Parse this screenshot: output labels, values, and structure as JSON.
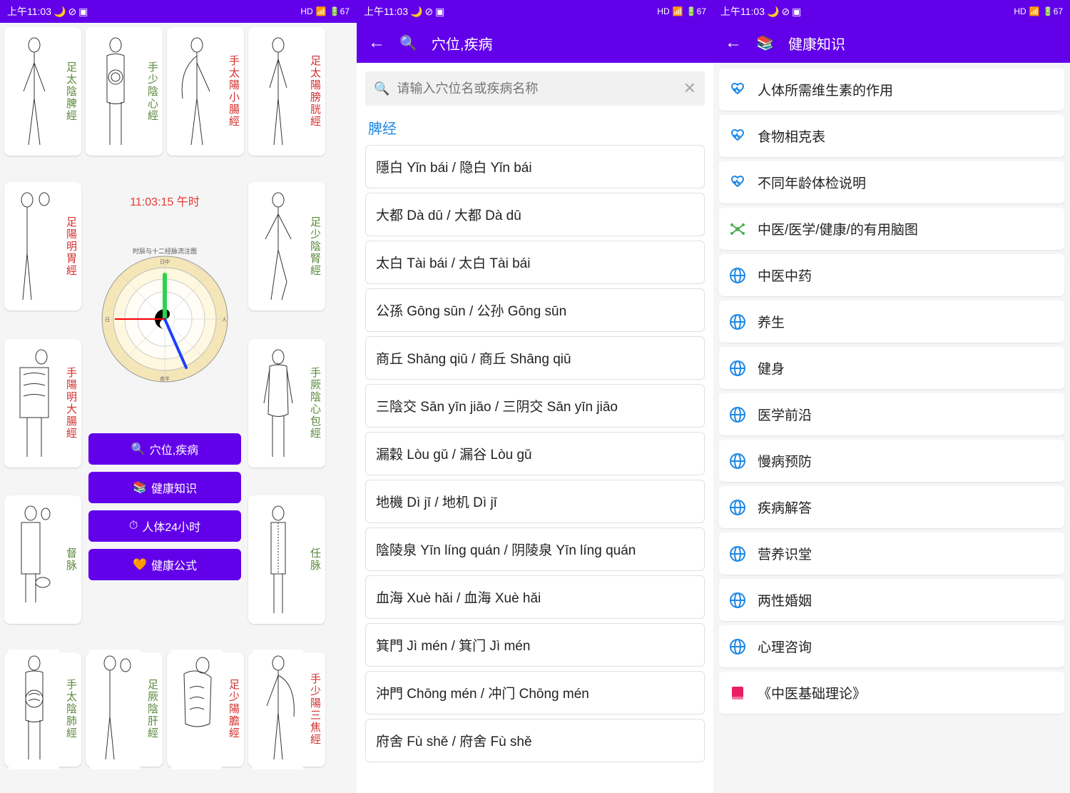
{
  "status": {
    "time": "上午11:03",
    "hd": "HD",
    "battery": "67"
  },
  "screen1": {
    "meridians_left": [
      {
        "label": "足太陰脾經",
        "color": "#5a8a3a"
      },
      {
        "label": "足陽明胃經",
        "color": "#d32f2f"
      },
      {
        "label": "手陽明大腸經",
        "color": "#d32f2f"
      },
      {
        "label": "督脉",
        "color": "#5a8a3a"
      },
      {
        "label": "手太陰肺經",
        "color": "#5a8a3a"
      }
    ],
    "meridians_left2": [
      {
        "label": "手少陰心經",
        "color": "#5a8a3a"
      },
      {
        "label": "足厥陰肝經",
        "color": "#5a8a3a"
      }
    ],
    "meridians_right": [
      {
        "label": "手太陽小腸經",
        "color": "#d32f2f"
      },
      {
        "label": "足少陽膽經",
        "color": "#5a8a3a"
      }
    ],
    "meridians_right2": [
      {
        "label": "足太陽膀胱經",
        "color": "#d32f2f"
      },
      {
        "label": "足少陰腎經",
        "color": "#5a8a3a"
      },
      {
        "label": "手厥陰心包經",
        "color": "#5a8a3a"
      },
      {
        "label": "任脉",
        "color": "#5a8a3a"
      },
      {
        "label": "手少陽三焦經",
        "color": "#d32f2f"
      }
    ],
    "clock_time": "11:03:15  午时",
    "clock_title": "时辰与十二经脉流注图",
    "buttons": [
      {
        "icon": "🔍",
        "label": "穴位,疾病"
      },
      {
        "icon": "📚",
        "label": "健康知识"
      },
      {
        "icon": "⏱",
        "label": "人体24小时"
      },
      {
        "icon": "🧡",
        "label": "健康公式"
      }
    ]
  },
  "screen2": {
    "title_icon": "🔍",
    "title": "穴位,疾病",
    "search_placeholder": "请输入穴位名或疾病名称",
    "section": "脾经",
    "items": [
      "隱白 Yǐn bái / 隐白 Yǐn bái",
      "大都 Dà dū / 大都 Dà dū",
      "太白 Tài bái / 太白 Tài bái",
      "公孫 Gōng sūn / 公孙 Gōng sūn",
      "商丘 Shāng qiū / 商丘 Shāng qiū",
      "三陰交 Sān yīn jiāo / 三阴交 Sān yīn jiāo",
      "漏穀 Lòu gǔ / 漏谷 Lòu gǔ",
      "地機 Dì jī / 地机 Dì jī",
      "陰陵泉 Yīn líng quán / 阴陵泉 Yīn líng quán",
      "血海 Xuè hǎi / 血海 Xuè hǎi",
      "箕門 Jì mén / 箕门 Jì mén",
      "沖門 Chōng mén / 冲门 Chōng mén",
      "府舍 Fù shě / 府舍 Fù shě"
    ]
  },
  "screen3": {
    "title_icon": "📚",
    "title": "健康知识",
    "items": [
      {
        "icon": "heart",
        "color": "#1e88e5",
        "label": "人体所需维生素的作用"
      },
      {
        "icon": "heart",
        "color": "#1e88e5",
        "label": "食物相克表"
      },
      {
        "icon": "heart",
        "color": "#1e88e5",
        "label": "不同年龄体检说明"
      },
      {
        "icon": "net",
        "color": "#4caf50",
        "label": "中医/医学/健康/的有用脑图"
      },
      {
        "icon": "globe",
        "color": "#1e88e5",
        "label": "中医中药"
      },
      {
        "icon": "globe",
        "color": "#1e88e5",
        "label": "养生"
      },
      {
        "icon": "globe",
        "color": "#1e88e5",
        "label": "健身"
      },
      {
        "icon": "globe",
        "color": "#1e88e5",
        "label": "医学前沿"
      },
      {
        "icon": "globe",
        "color": "#1e88e5",
        "label": "慢病预防"
      },
      {
        "icon": "globe",
        "color": "#1e88e5",
        "label": "疾病解答"
      },
      {
        "icon": "globe",
        "color": "#1e88e5",
        "label": "营养识堂"
      },
      {
        "icon": "globe",
        "color": "#1e88e5",
        "label": "两性婚姻"
      },
      {
        "icon": "globe",
        "color": "#1e88e5",
        "label": "心理咨询"
      },
      {
        "icon": "book",
        "color": "#e91e63",
        "label": "《中医基础理论》"
      }
    ]
  },
  "colors": {
    "primary": "#6200ea",
    "accent_blue": "#1e88e5",
    "accent_green": "#4caf50",
    "accent_pink": "#e91e63",
    "text_green": "#5a8a3a",
    "text_red": "#d32f2f"
  }
}
